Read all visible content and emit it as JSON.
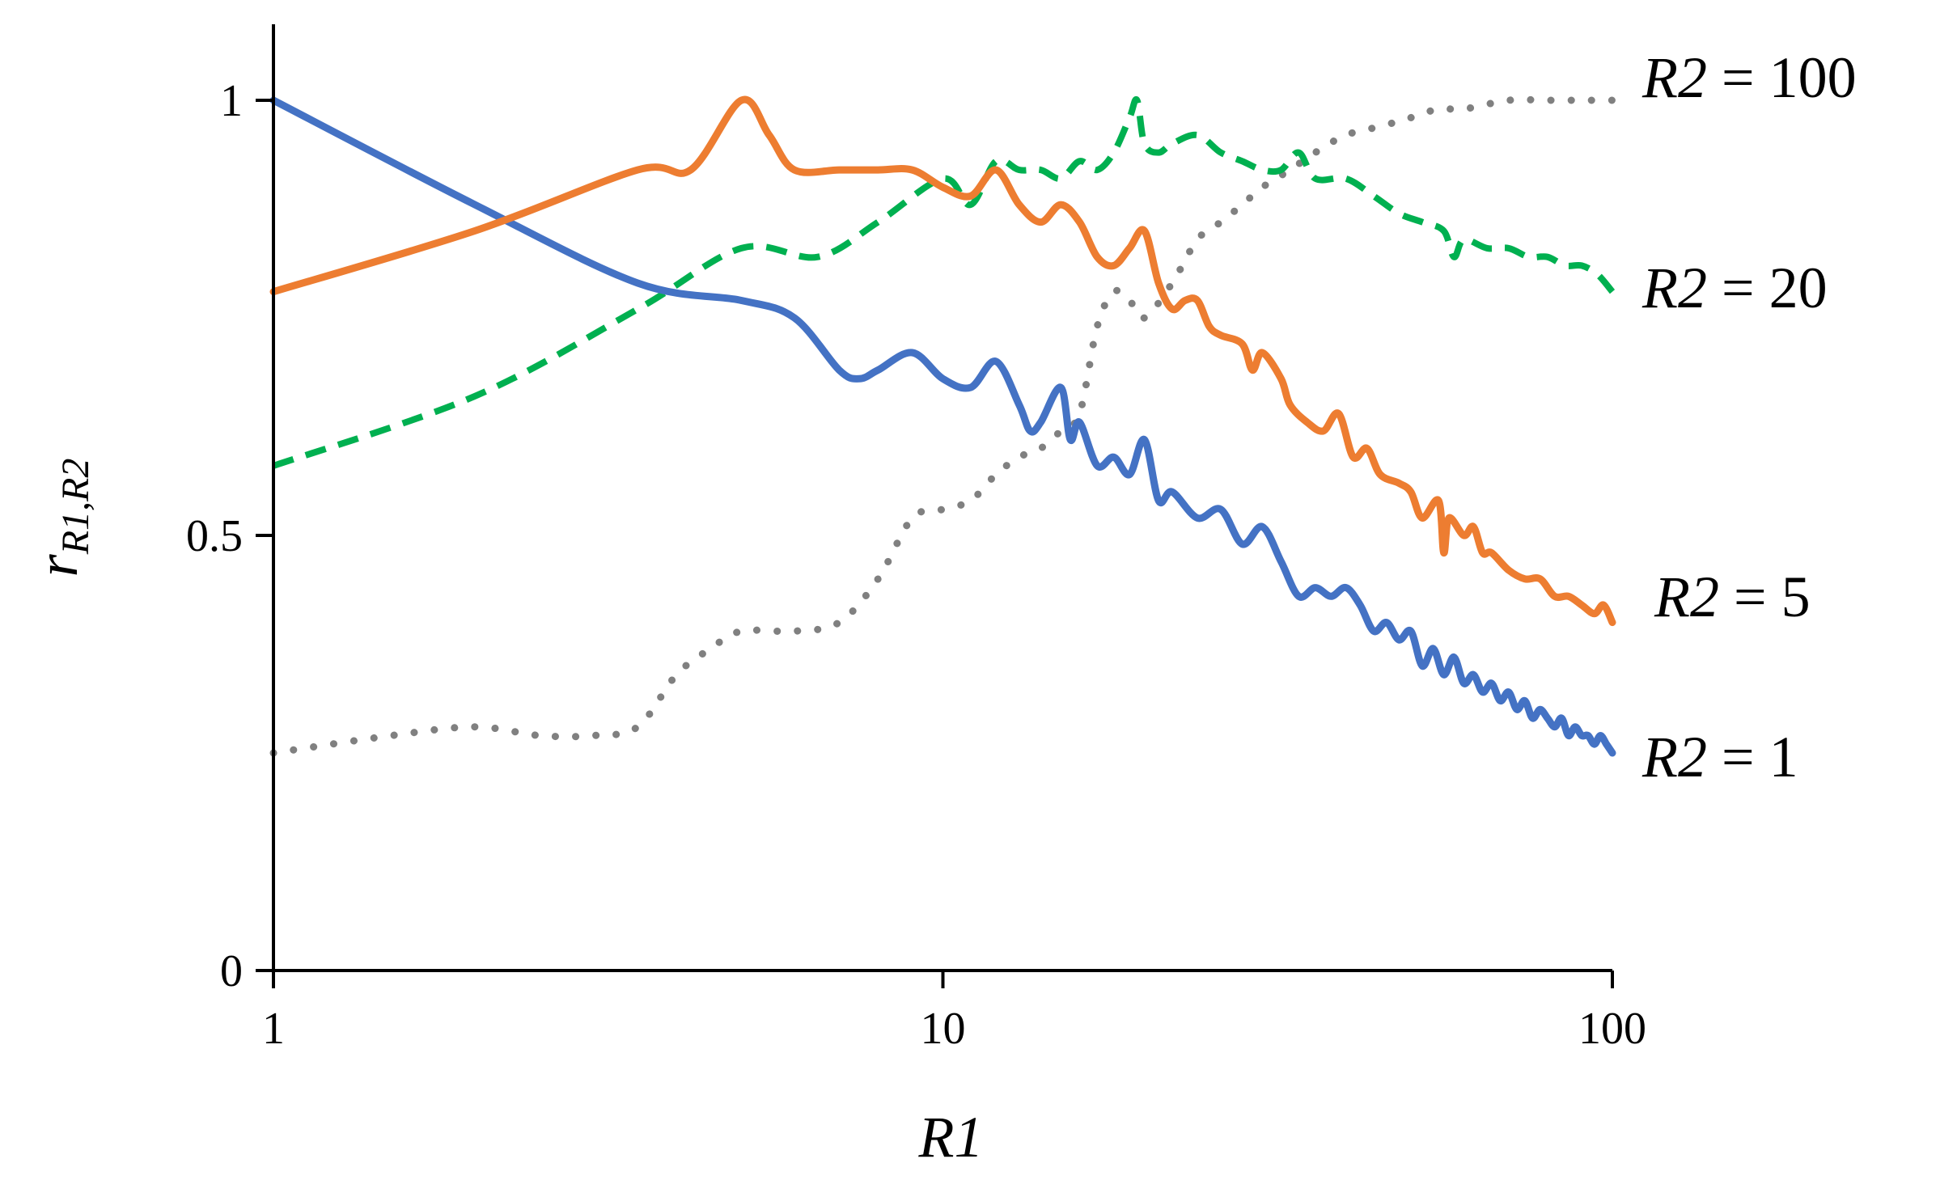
{
  "chart_data": {
    "type": "line",
    "title": "",
    "xlabel": "R1",
    "ylabel": "r",
    "ylabel_subscript": "R1,R2",
    "xscale": "log",
    "xlim": [
      1,
      100
    ],
    "ylim": [
      0,
      1.1
    ],
    "xticks": [
      1,
      10,
      100
    ],
    "xtick_labels": [
      "1",
      "10",
      "100"
    ],
    "yticks": [
      0,
      0.5,
      1
    ],
    "ytick_labels": [
      "0",
      "0.5",
      "1"
    ],
    "grid": false,
    "legend": "none (direct labels at right end of lines)",
    "series": [
      {
        "name": "R2 = 1",
        "label_var": "R2",
        "label_op": " = ",
        "label_val": "1",
        "color": "#4472c4",
        "style": "solid",
        "x": [
          1,
          2,
          3.5,
          5,
          6,
          7,
          7.5,
          8,
          9,
          10,
          11,
          12,
          13,
          13.5,
          14,
          15,
          15.5,
          16,
          17,
          18,
          19,
          20,
          21,
          22,
          24,
          26,
          28,
          30,
          32,
          34,
          36,
          38,
          40,
          42,
          44,
          46,
          48,
          50,
          52,
          54,
          56,
          58,
          60,
          62,
          64,
          66,
          68,
          70,
          72,
          74,
          76,
          78,
          80,
          82,
          84,
          86,
          88,
          90,
          92,
          94,
          96,
          98,
          100
        ],
        "y": [
          1.0,
          0.88,
          0.79,
          0.77,
          0.75,
          0.69,
          0.68,
          0.69,
          0.71,
          0.68,
          0.67,
          0.7,
          0.65,
          0.62,
          0.63,
          0.67,
          0.61,
          0.63,
          0.58,
          0.59,
          0.57,
          0.61,
          0.54,
          0.55,
          0.52,
          0.53,
          0.49,
          0.51,
          0.47,
          0.43,
          0.44,
          0.43,
          0.44,
          0.42,
          0.39,
          0.4,
          0.38,
          0.39,
          0.35,
          0.37,
          0.34,
          0.36,
          0.33,
          0.34,
          0.32,
          0.33,
          0.31,
          0.32,
          0.3,
          0.31,
          0.29,
          0.3,
          0.29,
          0.28,
          0.29,
          0.27,
          0.28,
          0.27,
          0.27,
          0.26,
          0.27,
          0.26,
          0.25
        ]
      },
      {
        "name": "R2 = 5",
        "label_var": "R2",
        "label_op": " = ",
        "label_val": "5",
        "color": "#ed7d31",
        "style": "solid",
        "x": [
          1,
          2,
          3.5,
          4.2,
          5,
          5.5,
          6,
          7,
          8,
          9,
          10,
          11,
          12,
          13,
          14,
          15,
          16,
          17,
          18,
          19,
          20,
          21,
          22,
          23,
          24,
          25,
          26,
          28,
          29,
          30,
          32,
          33,
          35,
          37,
          39,
          41,
          43,
          45,
          48,
          50,
          52,
          55,
          56,
          57,
          60,
          62,
          64,
          66,
          70,
          74,
          78,
          82,
          86,
          90,
          94,
          97,
          100
        ],
        "y": [
          0.78,
          0.85,
          0.92,
          0.92,
          1.0,
          0.96,
          0.92,
          0.92,
          0.92,
          0.92,
          0.9,
          0.89,
          0.92,
          0.88,
          0.86,
          0.88,
          0.86,
          0.82,
          0.81,
          0.83,
          0.85,
          0.79,
          0.76,
          0.77,
          0.77,
          0.74,
          0.73,
          0.72,
          0.69,
          0.71,
          0.68,
          0.65,
          0.63,
          0.62,
          0.64,
          0.59,
          0.6,
          0.57,
          0.56,
          0.55,
          0.52,
          0.54,
          0.48,
          0.52,
          0.5,
          0.51,
          0.48,
          0.48,
          0.46,
          0.45,
          0.45,
          0.43,
          0.43,
          0.42,
          0.41,
          0.42,
          0.4
        ]
      },
      {
        "name": "R2 = 20",
        "label_var": "R2",
        "label_op": " = ",
        "label_val": "20",
        "color": "#00b050",
        "style": "dashed",
        "x": [
          1,
          2,
          3.5,
          5,
          6.5,
          8,
          10,
          11,
          12,
          13,
          14,
          15,
          16,
          17,
          18,
          19,
          19.5,
          20,
          21,
          22,
          24,
          26,
          28,
          30,
          32,
          34,
          36,
          40,
          44,
          48,
          52,
          56,
          58,
          60,
          65,
          70,
          75,
          80,
          85,
          90,
          95,
          100
        ],
        "y": [
          0.58,
          0.66,
          0.76,
          0.83,
          0.82,
          0.86,
          0.91,
          0.88,
          0.93,
          0.92,
          0.92,
          0.91,
          0.93,
          0.92,
          0.94,
          0.98,
          1.0,
          0.95,
          0.94,
          0.95,
          0.96,
          0.94,
          0.93,
          0.92,
          0.92,
          0.94,
          0.91,
          0.91,
          0.89,
          0.87,
          0.86,
          0.85,
          0.82,
          0.84,
          0.83,
          0.83,
          0.82,
          0.82,
          0.81,
          0.81,
          0.8,
          0.78
        ]
      },
      {
        "name": "R2 = 100",
        "label_var": "R2",
        "label_op": " = ",
        "label_val": "100",
        "color": "#808080",
        "style": "dotted",
        "x": [
          1,
          1.5,
          2,
          2.5,
          3,
          3.5,
          4,
          4.5,
          5,
          6,
          7,
          8,
          9,
          10,
          11,
          12,
          13,
          14,
          15,
          16,
          17,
          18,
          19,
          20,
          22,
          24,
          26,
          28,
          30,
          33,
          36,
          40,
          45,
          50,
          55,
          60,
          70,
          80,
          90,
          100
        ],
        "y": [
          0.25,
          0.27,
          0.28,
          0.27,
          0.27,
          0.28,
          0.34,
          0.37,
          0.39,
          0.39,
          0.4,
          0.45,
          0.52,
          0.53,
          0.54,
          0.57,
          0.59,
          0.6,
          0.62,
          0.64,
          0.74,
          0.78,
          0.77,
          0.75,
          0.79,
          0.84,
          0.86,
          0.88,
          0.9,
          0.92,
          0.94,
          0.96,
          0.97,
          0.98,
          0.99,
          0.99,
          1.0,
          1.0,
          1.0,
          1.0
        ]
      }
    ]
  }
}
